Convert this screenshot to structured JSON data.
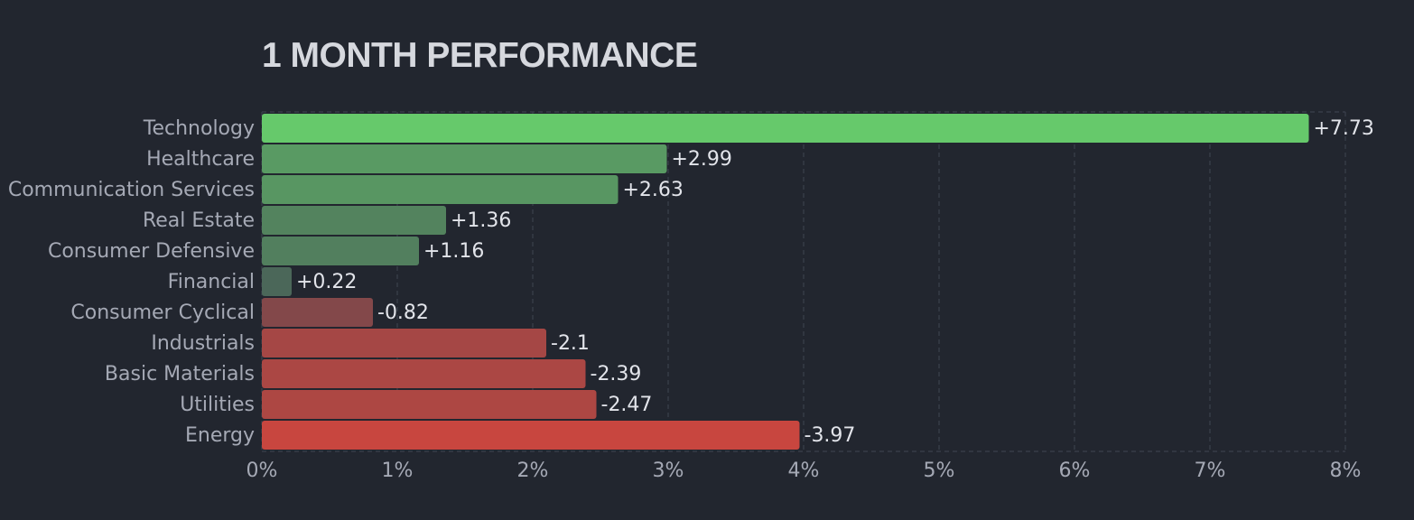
{
  "chart_data": {
    "type": "bar",
    "orientation": "horizontal",
    "title": "1 MONTH PERFORMANCE",
    "categories": [
      "Technology",
      "Healthcare",
      "Communication Services",
      "Real Estate",
      "Consumer Defensive",
      "Financial",
      "Consumer Cyclical",
      "Industrials",
      "Basic Materials",
      "Utilities",
      "Energy"
    ],
    "values": [
      7.73,
      2.99,
      2.63,
      1.36,
      1.16,
      0.22,
      -0.82,
      -2.1,
      -2.39,
      -2.47,
      -3.97
    ],
    "value_labels": [
      "+7.73",
      "+2.99",
      "+2.63",
      "+1.36",
      "+1.16",
      "+0.22",
      "-0.82",
      "-2.1",
      "-2.39",
      "-2.47",
      "-3.97"
    ],
    "bar_length": "absolute value",
    "xlim": [
      0,
      8
    ],
    "xticks": [
      0,
      1,
      2,
      3,
      4,
      5,
      6,
      7,
      8
    ],
    "xtick_labels": [
      "0%",
      "1%",
      "2%",
      "3%",
      "4%",
      "5%",
      "6%",
      "7%",
      "8%"
    ],
    "grid": "vertical dashed",
    "legend": "none",
    "colors": {
      "background": "#22262f",
      "positive_max": "#66c96b",
      "neutral": "#434a54",
      "negative_max": "#c8463f",
      "grid": "#3b404c"
    }
  }
}
